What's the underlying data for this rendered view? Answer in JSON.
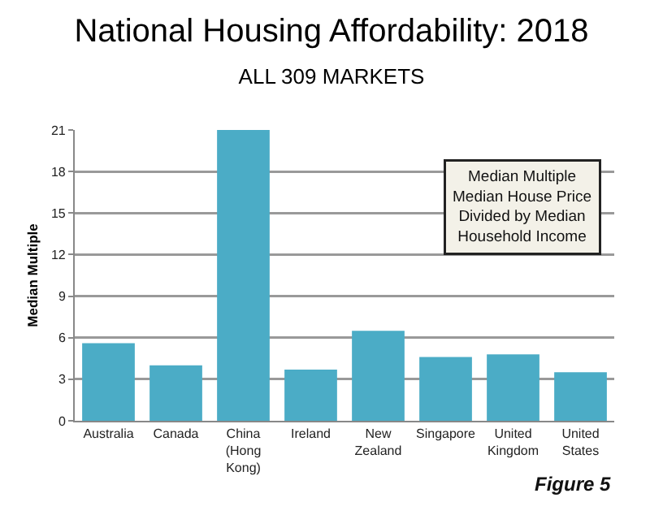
{
  "chart_data": {
    "type": "bar",
    "title": "National Housing Affordability: 2018",
    "subtitle": "ALL 309 MARKETS",
    "ylabel": "Median Multiple",
    "categories": [
      "Australia",
      "Canada",
      "China (Hong Kong)",
      "Ireland",
      "New Zealand",
      "Singapore",
      "United Kingdom",
      "United States"
    ],
    "values": [
      5.6,
      4.0,
      21.0,
      3.7,
      6.5,
      4.6,
      4.8,
      3.5
    ],
    "color": "#4bacc6",
    "ylim": [
      0,
      21
    ],
    "yticks": [
      0,
      3,
      6,
      9,
      12,
      15,
      18,
      21
    ],
    "grid": "y",
    "legend": false,
    "annotations": [
      "Median Multiple\nMedian House Price\nDivided by Median\nHousehold Income",
      "Figure 5"
    ]
  }
}
